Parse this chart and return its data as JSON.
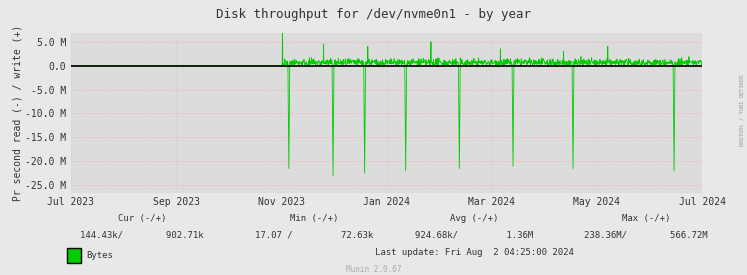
{
  "title": "Disk throughput for /dev/nvme0n1 - by year",
  "ylabel": "Pr second read (-) / write (+)",
  "background_color": "#E8E8E8",
  "plot_bg_color": "#DCDCDC",
  "grid_color_h": "#FF9999",
  "grid_color_v": "#CCCCCC",
  "line_color": "#00CC00",
  "zero_line_color": "#000000",
  "ylim": [
    -26500000,
    6800000
  ],
  "yticks": [
    -25000000,
    -20000000,
    -15000000,
    -10000000,
    -5000000,
    0,
    5000000
  ],
  "ytick_labels": [
    "-25.0 M",
    "-20.0 M",
    "-15.0 M",
    "-10.0 M",
    "-5.0 M",
    "0.0",
    "5.0 M"
  ],
  "xtick_labels": [
    "Jul 2023",
    "Sep 2023",
    "Nov 2023",
    "Jan 2024",
    "Mar 2024",
    "May 2024",
    "Jul 2024"
  ],
  "legend_label": "Bytes",
  "legend_color": "#00CC00",
  "cur_label": "Cur (-/+)",
  "cur_val": "144.43k/        902.71k",
  "min_label": "Min (-/+)",
  "min_val": "17.07 /         72.63k",
  "avg_label": "Avg (-/+)",
  "avg_val": "924.68k/         1.36M",
  "max_label": "Max (-/+)",
  "max_val": "238.36M/        566.72M",
  "footer_update": "Last update: Fri Aug  2 04:25:00 2024",
  "munin_version": "Munin 2.0.67",
  "side_text": "RRDTOOL / TOBI OETIKER",
  "title_fontsize": 9,
  "tick_fontsize": 7,
  "footer_fontsize": 6.5
}
